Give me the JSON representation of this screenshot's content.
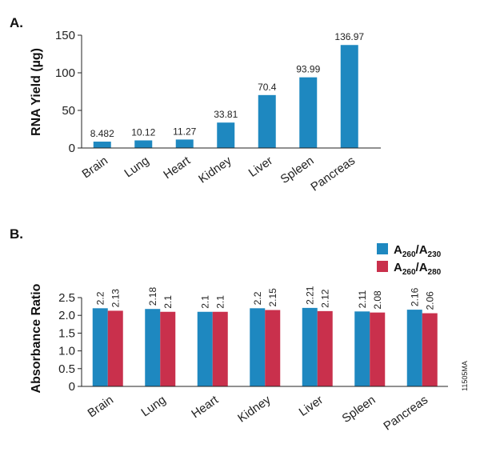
{
  "figure_code": "11505MA",
  "chart_data": [
    {
      "type": "bar",
      "panel_label": "A.",
      "ylabel": "RNA Yield (µg)",
      "xlabel": "",
      "categories": [
        "Brain",
        "Lung",
        "Heart",
        "Kidney",
        "Liver",
        "Spleen",
        "Pancreas"
      ],
      "values": [
        8.482,
        10.12,
        11.27,
        33.81,
        70.4,
        93.99,
        136.97
      ],
      "value_labels": [
        "8.482",
        "10.12",
        "11.27",
        "33.81",
        "70.4",
        "93.99",
        "136.97"
      ],
      "ylim": [
        0,
        150
      ],
      "yticks": [
        0,
        50,
        100,
        150
      ],
      "ytick_labels": [
        "0",
        "50",
        "100",
        "150"
      ],
      "color": "#1e88c0",
      "grid": false
    },
    {
      "type": "bar",
      "panel_label": "B.",
      "ylabel": "Absorbance Ratio",
      "xlabel": "",
      "categories": [
        "Brain",
        "Lung",
        "Heart",
        "Kidney",
        "Liver",
        "Spleen",
        "Pancreas"
      ],
      "series": [
        {
          "name": "A260/A230",
          "legend": {
            "main": "A",
            "sub1": "260",
            "slash": "/A",
            "sub2": "230"
          },
          "color": "#1e88c0",
          "values": [
            2.2,
            2.18,
            2.1,
            2.2,
            2.21,
            2.11,
            2.16
          ],
          "value_labels": [
            "2.2",
            "2.18",
            "2.1",
            "2.2",
            "2.21",
            "2.11",
            "2.16"
          ]
        },
        {
          "name": "A260/A280",
          "legend": {
            "main": "A",
            "sub1": "260",
            "slash": "/A",
            "sub2": "280"
          },
          "color": "#c9304c",
          "values": [
            2.13,
            2.1,
            2.1,
            2.15,
            2.12,
            2.08,
            2.06
          ],
          "value_labels": [
            "2.13",
            "2.1",
            "2.1",
            "2.15",
            "2.12",
            "2.08",
            "2.06"
          ]
        }
      ],
      "ylim": [
        0,
        2.5
      ],
      "yticks": [
        0,
        0.5,
        1.0,
        1.5,
        2.0,
        2.5
      ],
      "ytick_labels": [
        "0",
        "0.5",
        "1.0",
        "1.5",
        "2.0",
        "2.5"
      ],
      "legend_position": "top-right",
      "grid": false
    }
  ]
}
